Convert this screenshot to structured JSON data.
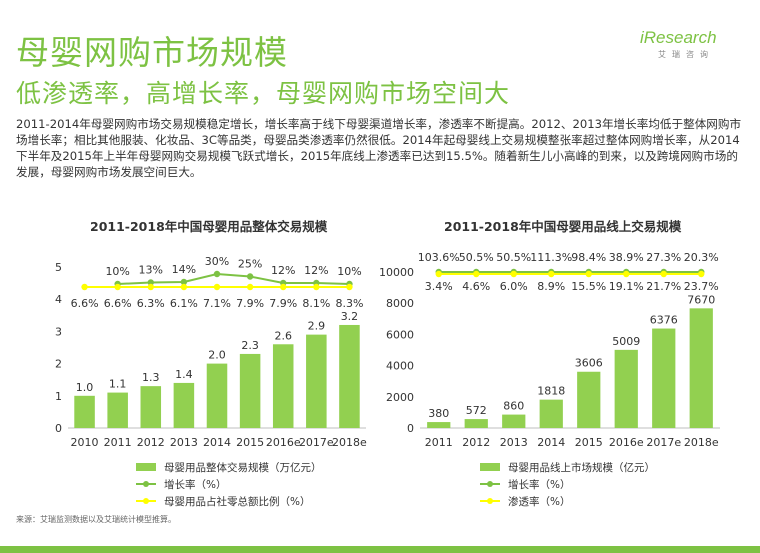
{
  "header": {
    "title": "母婴网购市场规模",
    "subtitle": "低渗透率，高增长率，母婴网购市场空间大",
    "logo_text": "iResearch",
    "logo_sub": "艾瑞咨询"
  },
  "paragraph": "2011-2014年母婴网购市场交易规模稳定增长，增长率高于线下母婴渠道增长率，渗透率不断提高。2012、2013年增长率均低于整体网购市场增长率；相比其他服装、化妆品、3C等品类，母婴品类渗透率仍然很低。2014年起母婴线上交易规模整张率超过整体网购增长率，从2014下半年及2015年上半年母婴网购交易规模飞跃式增长，2015年底线上渗透率已达到15.5%。随着新生儿小高峰的到来，以及跨境网购市场的发展，母婴网购市场发展空间巨大。",
  "source": "来源：艾瑞监测数据以及艾瑞统计模型推算。",
  "colors": {
    "bar": "#92d050",
    "growth": "#7dc243",
    "penetration": "#ffff00",
    "accent": "#7dc243"
  },
  "chart_data": [
    {
      "type": "bar",
      "title": "2011-2018年中国母婴用品整体交易规模",
      "categories": [
        "2010",
        "2011",
        "2012",
        "2013",
        "2014",
        "2015",
        "2016e",
        "2017e",
        "2018e"
      ],
      "ylim": [
        0,
        5
      ],
      "yticks": [
        "0",
        "1",
        "2",
        "3",
        "4",
        "5"
      ],
      "bar_labels": [
        "1.0",
        "1.1",
        "1.3",
        "1.4",
        "2.0",
        "2.3",
        "2.6",
        "2.9",
        "3.2"
      ],
      "series": [
        {
          "name": "母婴用品整体交易规模（万亿元）",
          "kind": "bar",
          "values": [
            1.0,
            1.1,
            1.3,
            1.4,
            2.0,
            2.3,
            2.6,
            2.9,
            3.2
          ]
        },
        {
          "name": "增长率（%）",
          "kind": "line",
          "values": [
            null,
            10,
            13,
            14,
            30,
            25,
            12,
            12,
            10
          ],
          "labels": [
            "",
            "10%",
            "13%",
            "14%",
            "30%",
            "25%",
            "12%",
            "12%",
            "10%"
          ]
        },
        {
          "name": "母婴用品占社零总额比例（%）",
          "kind": "line",
          "values": [
            6.6,
            6.6,
            6.3,
            6.1,
            7.1,
            7.9,
            7.9,
            8.1,
            8.3
          ],
          "labels": [
            "6.6%",
            "6.6%",
            "6.3%",
            "6.1%",
            "7.1%",
            "7.9%",
            "7.9%",
            "8.1%",
            "8.3%"
          ]
        }
      ],
      "legend_position": "bottom"
    },
    {
      "type": "bar",
      "title": "2011-2018年中国母婴用品线上交易规模",
      "categories": [
        "2011",
        "2012",
        "2013",
        "2014",
        "2015",
        "2016e",
        "2017e",
        "2018e"
      ],
      "ylim": [
        0,
        10000
      ],
      "yticks": [
        "0",
        "2000",
        "4000",
        "6000",
        "8000",
        "10000"
      ],
      "bar_labels": [
        "380",
        "572",
        "860",
        "1818",
        "3606",
        "5009",
        "6376",
        "7670"
      ],
      "series": [
        {
          "name": "母婴用品线上市场规模（亿元）",
          "kind": "bar",
          "values": [
            380,
            572,
            860,
            1818,
            3606,
            5009,
            6376,
            7670
          ]
        },
        {
          "name": "增长率（%）",
          "kind": "line",
          "values": [
            103.6,
            50.5,
            50.5,
            111.3,
            98.4,
            38.9,
            27.3,
            20.3
          ],
          "labels": [
            "103.6%",
            "50.5%",
            "50.5%",
            "111.3%",
            "98.4%",
            "38.9%",
            "27.3%",
            "20.3%"
          ]
        },
        {
          "name": "渗透率（%）",
          "kind": "line",
          "values": [
            3.4,
            4.6,
            6.0,
            8.9,
            15.5,
            19.1,
            21.7,
            23.7
          ],
          "labels": [
            "3.4%",
            "4.6%",
            "6.0%",
            "8.9%",
            "15.5%",
            "19.1%",
            "21.7%",
            "23.7%"
          ]
        }
      ],
      "legend_position": "bottom"
    }
  ]
}
